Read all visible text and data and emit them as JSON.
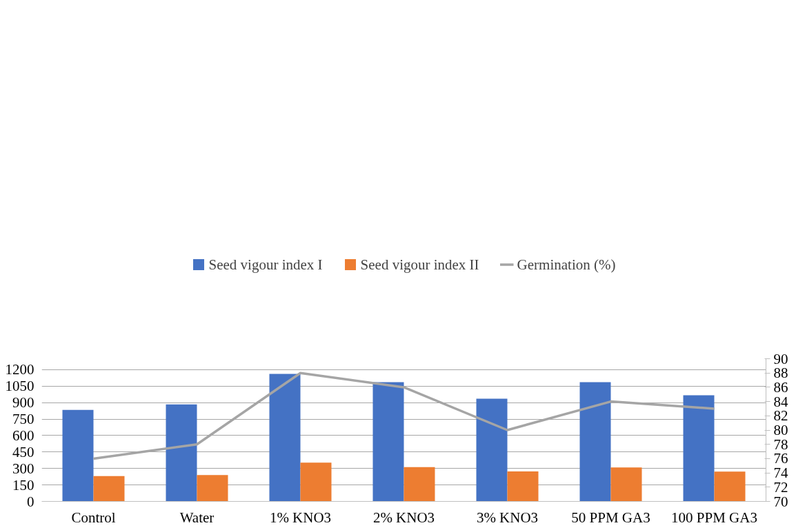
{
  "chart_data": {
    "type": "bar",
    "categories": [
      "Control",
      "Water",
      "1% KNO3",
      "2% KNO3",
      "3% KNO3",
      "50 PPM GA3",
      "100 PPM GA3"
    ],
    "series": [
      {
        "name": "Seed vigour index I",
        "color": "#4472c4",
        "values": [
          833,
          884,
          1162,
          1087,
          936,
          1087,
          967
        ]
      },
      {
        "name": "Seed vigour index II",
        "color": "#ed7d31",
        "values": [
          231,
          240,
          353,
          313,
          273,
          309,
          271
        ]
      },
      {
        "name": "Germination (%)",
        "type": "line",
        "axis": "y2",
        "color": "#a5a5a5",
        "values": [
          76,
          78,
          88,
          86,
          80,
          84,
          83
        ]
      }
    ],
    "ylim": [
      0,
      1300
    ],
    "yticks": [
      0,
      150,
      300,
      450,
      600,
      750,
      900,
      1050,
      1200
    ],
    "y2lim": [
      70,
      90
    ],
    "y2ticks": [
      70,
      72,
      74,
      76,
      78,
      80,
      82,
      84,
      86,
      88,
      90
    ],
    "grid": "y",
    "legend": "top",
    "marker": "none",
    "line_style": "solid"
  }
}
